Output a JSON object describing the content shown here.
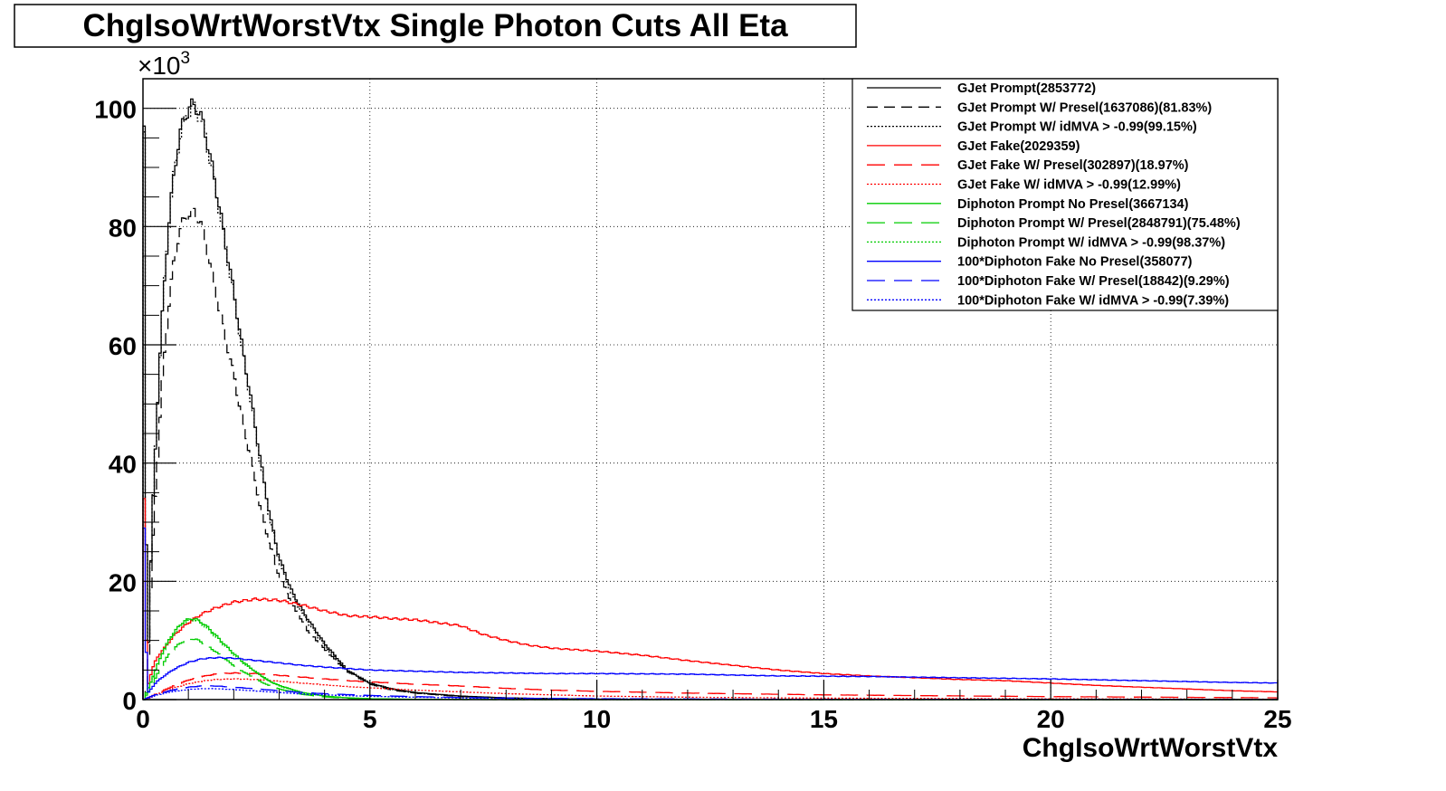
{
  "chart_data": {
    "type": "line",
    "title": "ChgIsoWrtWorstVtx Single Photon Cuts All Eta",
    "xlabel": "ChgIsoWrtWorstVtx",
    "ylabel": "",
    "y_multiplier_label": "×10",
    "y_multiplier_exp": "3",
    "xlim": [
      0,
      25
    ],
    "ylim": [
      0,
      105
    ],
    "x_ticks": [
      "0",
      "5",
      "10",
      "15",
      "20",
      "25"
    ],
    "y_ticks": [
      "0",
      "20",
      "40",
      "60",
      "80",
      "100"
    ],
    "grid": true,
    "legend_position": "top-right",
    "series": [
      {
        "name": "GJet Prompt(2853772)",
        "color": "#000000",
        "dash": "solid",
        "x": [
          0,
          0.1,
          0.2,
          0.3,
          0.4,
          0.5,
          0.6,
          0.7,
          0.8,
          0.9,
          1.0,
          1.1,
          1.2,
          1.3,
          1.4,
          1.5,
          1.6,
          1.8,
          2.0,
          2.2,
          2.4,
          2.6,
          2.8,
          3.0,
          3.3,
          3.6,
          4.0,
          4.5,
          5.0,
          5.5,
          6,
          7,
          8,
          9,
          10,
          12,
          15,
          20,
          25
        ],
        "y": [
          97,
          3,
          30,
          47,
          62,
          74,
          83,
          90,
          95,
          98,
          100,
          100.5,
          100,
          98,
          95,
          91,
          87,
          78,
          69,
          59,
          50,
          40,
          31,
          24,
          18,
          14,
          9.5,
          5,
          2.8,
          1.8,
          1.2,
          0.6,
          0.3,
          0.15,
          0.08,
          0.03,
          0.01,
          0,
          0
        ]
      },
      {
        "name": "GJet Prompt W/ Presel(1637086)(81.83%)",
        "color": "#000000",
        "dash": "12,7",
        "x": [
          0,
          0.1,
          0.2,
          0.3,
          0.4,
          0.5,
          0.6,
          0.7,
          0.8,
          0.9,
          1.0,
          1.1,
          1.2,
          1.3,
          1.4,
          1.5,
          1.6,
          1.8,
          2.0,
          2.2,
          2.4,
          2.6,
          2.8,
          3.0,
          3.3,
          3.6,
          4.0,
          4.5,
          5.0,
          5.5,
          6,
          7,
          8,
          9,
          10,
          12,
          15,
          20,
          25
        ],
        "y": [
          0,
          2,
          24,
          38,
          51,
          61,
          69,
          75,
          79,
          81,
          82,
          82.5,
          82,
          80,
          77,
          73,
          69,
          62,
          55,
          47,
          40,
          32,
          26,
          21,
          16,
          12,
          8.5,
          4.8,
          2.6,
          1.6,
          1.1,
          0.5,
          0.25,
          0.12,
          0.06,
          0.02,
          0.01,
          0,
          0
        ]
      },
      {
        "name": "GJet Prompt W/ idMVA > -0.99(99.15%)",
        "color": "#000000",
        "dash": "2,2",
        "x": [
          0,
          0.1,
          0.2,
          0.3,
          0.4,
          0.5,
          0.6,
          0.7,
          0.8,
          0.9,
          1.0,
          1.1,
          1.2,
          1.3,
          1.4,
          1.5,
          1.6,
          1.8,
          2.0,
          2.2,
          2.4,
          2.6,
          2.8,
          3.0,
          3.3,
          3.6,
          4.0,
          4.5,
          5.0,
          5.5,
          6,
          7,
          8,
          9,
          10,
          12,
          15,
          20,
          25
        ],
        "y": [
          96,
          3,
          30,
          47,
          62,
          74,
          83,
          90,
          94.5,
          97.5,
          99.5,
          100,
          99.5,
          97.5,
          94.5,
          90.5,
          86.5,
          77.5,
          68.5,
          58.5,
          49.5,
          39.5,
          30.5,
          23.5,
          17.5,
          13.5,
          9.2,
          4.8,
          2.7,
          1.7,
          1.1,
          0.55,
          0.28,
          0.14,
          0.07,
          0.03,
          0.01,
          0,
          0
        ]
      },
      {
        "name": "GJet Fake(2029359)",
        "color": "#ff0000",
        "dash": "solid",
        "x": [
          0,
          0.1,
          0.2,
          0.3,
          0.5,
          0.7,
          1.0,
          1.3,
          1.6,
          2.0,
          2.5,
          3.0,
          3.5,
          4.0,
          4.5,
          5.0,
          5.5,
          6.0,
          6.5,
          7.0,
          7.5,
          8.0,
          8.5,
          9.0,
          10,
          11,
          12,
          13,
          14,
          15,
          16,
          17,
          18,
          19,
          20,
          21,
          22,
          23,
          24,
          25
        ],
        "y": [
          34,
          2,
          5,
          7,
          9,
          11,
          13,
          14.5,
          15.5,
          16.5,
          17,
          16.8,
          16,
          15,
          14.2,
          14,
          13.7,
          13.5,
          13,
          12.5,
          11,
          10,
          9.2,
          8.7,
          8.2,
          7.5,
          6.6,
          5.8,
          5,
          4.4,
          4,
          3.7,
          3.4,
          3.2,
          2.8,
          2.4,
          2.1,
          1.8,
          1.5,
          1.3
        ]
      },
      {
        "name": "GJet Fake W/ Presel(302897)(18.97%)",
        "color": "#ff0000",
        "dash": "20,10",
        "x": [
          0,
          0.1,
          0.2,
          0.3,
          0.5,
          0.7,
          1.0,
          1.3,
          1.6,
          2.0,
          2.5,
          3.0,
          3.5,
          4.0,
          4.5,
          5.0,
          6,
          7,
          8,
          9,
          10,
          12,
          15,
          20,
          25
        ],
        "y": [
          0,
          0.2,
          0.6,
          1.0,
          1.7,
          2.4,
          3.3,
          3.9,
          4.3,
          4.5,
          4.4,
          4.1,
          3.8,
          3.5,
          3.2,
          3.0,
          2.6,
          2.3,
          1.9,
          1.6,
          1.4,
          1.1,
          0.8,
          0.5,
          0.3
        ]
      },
      {
        "name": "GJet Fake W/ idMVA > -0.99(12.99%)",
        "color": "#ff0000",
        "dash": "2,2",
        "x": [
          0,
          0.1,
          0.2,
          0.3,
          0.5,
          0.7,
          1.0,
          1.3,
          1.6,
          2.0,
          2.5,
          3.0,
          3.5,
          4.0,
          4.5,
          5.0,
          6,
          7,
          8,
          9,
          10,
          12,
          15,
          20,
          25
        ],
        "y": [
          0,
          0.2,
          0.5,
          0.9,
          1.4,
          2.0,
          2.7,
          3.1,
          3.4,
          3.5,
          3.4,
          3.1,
          2.8,
          2.5,
          2.2,
          2.0,
          1.6,
          1.3,
          1.0,
          0.8,
          0.6,
          0.4,
          0.25,
          0.12,
          0.06
        ]
      },
      {
        "name": "Diphoton Prompt No Presel(3667134)",
        "color": "#00cc00",
        "dash": "solid",
        "x": [
          0,
          0.1,
          0.2,
          0.3,
          0.4,
          0.5,
          0.6,
          0.7,
          0.8,
          0.9,
          1.0,
          1.1,
          1.2,
          1.3,
          1.4,
          1.5,
          1.6,
          1.8,
          2.0,
          2.2,
          2.5,
          2.8,
          3.0,
          3.5,
          4.0,
          4.5,
          5.0,
          6,
          7,
          8,
          10,
          15,
          25
        ],
        "y": [
          0,
          1.5,
          3.5,
          5.5,
          7.5,
          9,
          10.5,
          11.5,
          12.5,
          13.2,
          13.6,
          13.7,
          13.5,
          13.0,
          12.4,
          11.7,
          10.9,
          9.3,
          7.8,
          6.4,
          4.6,
          3.1,
          2.4,
          1.2,
          0.6,
          0.3,
          0.15,
          0.05,
          0.02,
          0.01,
          0,
          0,
          0
        ]
      },
      {
        "name": "Diphoton Prompt W/ Presel(2848791)(75.48%)",
        "color": "#00cc00",
        "dash": "20,10",
        "x": [
          0,
          0.1,
          0.2,
          0.3,
          0.4,
          0.5,
          0.6,
          0.7,
          0.8,
          0.9,
          1.0,
          1.1,
          1.2,
          1.3,
          1.4,
          1.5,
          1.6,
          1.8,
          2.0,
          2.2,
          2.5,
          2.8,
          3.0,
          3.5,
          4.0,
          4.5,
          5.0,
          6,
          7,
          8,
          10,
          15,
          25
        ],
        "y": [
          0,
          1.0,
          2.5,
          4.0,
          5.5,
          6.8,
          7.9,
          8.7,
          9.4,
          9.9,
          10.2,
          10.3,
          10.1,
          9.7,
          9.2,
          8.7,
          8.1,
          6.9,
          5.8,
          4.8,
          3.4,
          2.3,
          1.8,
          0.9,
          0.45,
          0.22,
          0.11,
          0.04,
          0.01,
          0,
          0,
          0,
          0
        ]
      },
      {
        "name": "Diphoton Prompt W/ idMVA > -0.99(98.37%)",
        "color": "#00cc00",
        "dash": "2,2",
        "x": [
          0,
          0.1,
          0.2,
          0.3,
          0.4,
          0.5,
          0.6,
          0.7,
          0.8,
          0.9,
          1.0,
          1.1,
          1.2,
          1.3,
          1.4,
          1.5,
          1.6,
          1.8,
          2.0,
          2.2,
          2.5,
          2.8,
          3.0,
          3.5,
          4.0,
          4.5,
          5.0,
          6,
          7,
          8,
          10,
          15,
          25
        ],
        "y": [
          0,
          1.5,
          3.4,
          5.4,
          7.4,
          8.9,
          10.3,
          11.3,
          12.3,
          13.0,
          13.4,
          13.5,
          13.3,
          12.8,
          12.2,
          11.5,
          10.7,
          9.1,
          7.7,
          6.3,
          4.5,
          3.0,
          2.3,
          1.2,
          0.6,
          0.3,
          0.15,
          0.05,
          0.02,
          0.01,
          0,
          0,
          0
        ]
      },
      {
        "name": "100*Diphoton Fake No Presel(358077)",
        "color": "#0000ff",
        "dash": "solid",
        "x": [
          0,
          0.1,
          0.2,
          0.3,
          0.5,
          0.7,
          1.0,
          1.3,
          1.6,
          2.0,
          2.5,
          3.0,
          3.5,
          4.0,
          5.0,
          6,
          7,
          8,
          9,
          10,
          12,
          14,
          16,
          18,
          20,
          22,
          24,
          25
        ],
        "y": [
          29,
          1.0,
          2.0,
          3.0,
          4.2,
          5.2,
          6.3,
          6.9,
          7.1,
          7.0,
          6.6,
          6.2,
          5.8,
          5.5,
          5.0,
          4.8,
          4.6,
          4.5,
          4.4,
          4.4,
          4.3,
          4.0,
          3.9,
          3.7,
          3.5,
          3.2,
          2.9,
          2.8
        ]
      },
      {
        "name": "100*Diphoton Fake W/ Presel(18842)(9.29%)",
        "color": "#0000ff",
        "dash": "20,10",
        "x": [
          0,
          0.1,
          0.2,
          0.3,
          0.5,
          0.7,
          1.0,
          1.3,
          1.6,
          2.0,
          2.5,
          3.0,
          3.5,
          4.0,
          5.0,
          6,
          7,
          8,
          10,
          12,
          15,
          20,
          25
        ],
        "y": [
          0,
          0.3,
          0.6,
          0.9,
          1.3,
          1.7,
          2.1,
          2.3,
          2.3,
          2.1,
          1.8,
          1.5,
          1.2,
          1.0,
          0.7,
          0.5,
          0.35,
          0.25,
          0.15,
          0.1,
          0.05,
          0.02,
          0.01
        ]
      },
      {
        "name": "100*Diphoton Fake W/ idMVA > -0.99(7.39%)",
        "color": "#0000ff",
        "dash": "2,2",
        "x": [
          0,
          0.1,
          0.2,
          0.3,
          0.5,
          0.7,
          1.0,
          1.3,
          1.6,
          2.0,
          2.5,
          3.0,
          3.5,
          4.0,
          5.0,
          6,
          7,
          8,
          10,
          12,
          15,
          20,
          25
        ],
        "y": [
          0,
          0.25,
          0.5,
          0.75,
          1.1,
          1.4,
          1.7,
          1.85,
          1.85,
          1.7,
          1.45,
          1.2,
          0.95,
          0.8,
          0.55,
          0.4,
          0.28,
          0.2,
          0.12,
          0.08,
          0.04,
          0.02,
          0.01
        ]
      }
    ]
  }
}
